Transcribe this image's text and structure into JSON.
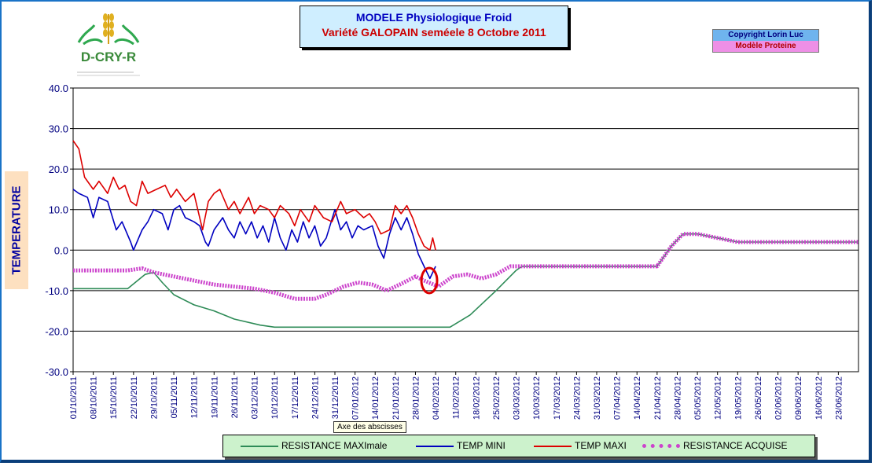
{
  "logo": {
    "text": "D-CRY-R",
    "icon": "wheat-hands-icon"
  },
  "header": {
    "title": "MODELE Physiologique Froid",
    "subtitle": "Variété GALOPAIN  seméele 8 Octobre 2011"
  },
  "copyright": {
    "line1": "Copyright Lorin Luc",
    "line2": "Modèle Proteine"
  },
  "tooltip": "Axe des abscisses",
  "colors": {
    "resistance_max": "#2e8b57",
    "temp_min": "#0000c0",
    "temp_max": "#dd0000",
    "resistance_acquise": "#cc44cc",
    "frame": "#1a73c7",
    "highlight": "#dd0000"
  },
  "chart_data": {
    "type": "line",
    "ylabel": "TEMPERATURE",
    "ylim": [
      -30,
      40
    ],
    "yticks": [
      "40.0",
      "30.0",
      "20.0",
      "10.0",
      "0.0",
      "-10.0",
      "-20.0",
      "-30.0"
    ],
    "grid": true,
    "legend_position": "bottom",
    "x_start": "01/10/2011",
    "x_end": "30/06/2012",
    "xticks": [
      "01/10/2011",
      "08/10/2011",
      "15/10/2011",
      "22/10/2011",
      "29/10/2011",
      "05/11/2011",
      "12/11/2011",
      "19/11/2011",
      "26/11/2011",
      "03/12/2011",
      "10/12/2011",
      "17/12/2011",
      "24/12/2011",
      "31/12/2011",
      "07/01/2012",
      "14/01/2012",
      "21/01/2012",
      "28/01/2012",
      "04/02/2012",
      "11/02/2012",
      "18/02/2012",
      "25/02/2012",
      "03/03/2012",
      "10/03/2012",
      "17/03/2012",
      "24/03/2012",
      "31/03/2012",
      "07/04/2012",
      "14/04/2012",
      "21/04/2012",
      "28/04/2012",
      "05/05/2012",
      "12/05/2012",
      "19/05/2012",
      "26/05/2012",
      "02/06/2012",
      "09/06/2012",
      "16/06/2012",
      "23/06/2012"
    ],
    "series": [
      {
        "name": "RESISTANCE MAXImale",
        "style": "line",
        "color": "#2e8b57",
        "points": [
          [
            "01/10/2011",
            -9.5
          ],
          [
            "20/10/2011",
            -9.5
          ],
          [
            "26/10/2011",
            -6
          ],
          [
            "29/10/2011",
            -5.5
          ],
          [
            "01/11/2011",
            -8
          ],
          [
            "05/11/2011",
            -11
          ],
          [
            "12/11/2011",
            -13.5
          ],
          [
            "19/11/2011",
            -15
          ],
          [
            "26/11/2011",
            -17
          ],
          [
            "05/12/2011",
            -18.5
          ],
          [
            "10/12/2011",
            -19
          ],
          [
            "09/02/2012",
            -19
          ],
          [
            "16/02/2012",
            -16
          ],
          [
            "25/02/2012",
            -10
          ],
          [
            "03/03/2012",
            -5
          ],
          [
            "05/03/2012",
            -4
          ],
          [
            "21/04/2012",
            -4
          ],
          [
            "26/04/2012",
            1
          ],
          [
            "30/04/2012",
            4
          ],
          [
            "05/05/2012",
            4
          ],
          [
            "12/05/2012",
            3
          ],
          [
            "19/05/2012",
            2
          ],
          [
            "30/06/2012",
            2
          ]
        ]
      },
      {
        "name": "TEMP MINI",
        "style": "line",
        "color": "#0000c0",
        "points": [
          [
            "01/10/2011",
            15
          ],
          [
            "03/10/2011",
            14
          ],
          [
            "06/10/2011",
            13
          ],
          [
            "08/10/2011",
            8
          ],
          [
            "10/10/2011",
            13
          ],
          [
            "13/10/2011",
            12
          ],
          [
            "16/10/2011",
            5
          ],
          [
            "18/10/2011",
            7
          ],
          [
            "21/10/2011",
            2
          ],
          [
            "22/10/2011",
            0
          ],
          [
            "25/10/2011",
            5
          ],
          [
            "27/10/2011",
            7
          ],
          [
            "29/10/2011",
            10
          ],
          [
            "01/11/2011",
            9
          ],
          [
            "03/11/2011",
            5
          ],
          [
            "05/11/2011",
            10
          ],
          [
            "07/11/2011",
            11
          ],
          [
            "09/11/2011",
            8
          ],
          [
            "12/11/2011",
            7
          ],
          [
            "14/11/2011",
            6
          ],
          [
            "16/11/2011",
            2
          ],
          [
            "17/11/2011",
            1
          ],
          [
            "19/11/2011",
            5
          ],
          [
            "22/11/2011",
            8
          ],
          [
            "24/11/2011",
            5
          ],
          [
            "26/11/2011",
            3
          ],
          [
            "28/11/2011",
            7
          ],
          [
            "30/11/2011",
            4
          ],
          [
            "02/12/2011",
            7
          ],
          [
            "04/12/2011",
            3
          ],
          [
            "06/12/2011",
            6
          ],
          [
            "08/12/2011",
            2
          ],
          [
            "10/12/2011",
            8
          ],
          [
            "12/12/2011",
            3
          ],
          [
            "14/12/2011",
            0
          ],
          [
            "16/12/2011",
            5
          ],
          [
            "18/12/2011",
            2
          ],
          [
            "20/12/2011",
            7
          ],
          [
            "22/12/2011",
            3
          ],
          [
            "24/12/2011",
            6
          ],
          [
            "26/12/2011",
            1
          ],
          [
            "28/12/2011",
            3
          ],
          [
            "31/12/2011",
            10
          ],
          [
            "02/01/2012",
            5
          ],
          [
            "04/01/2012",
            7
          ],
          [
            "06/01/2012",
            3
          ],
          [
            "08/01/2012",
            6
          ],
          [
            "10/01/2012",
            5
          ],
          [
            "13/01/2012",
            6
          ],
          [
            "15/01/2012",
            1
          ],
          [
            "17/01/2012",
            -2
          ],
          [
            "19/01/2012",
            4
          ],
          [
            "21/01/2012",
            8
          ],
          [
            "23/01/2012",
            5
          ],
          [
            "25/01/2012",
            8
          ],
          [
            "27/01/2012",
            4
          ],
          [
            "29/01/2012",
            -1
          ],
          [
            "31/01/2012",
            -4
          ],
          [
            "02/02/2012",
            -7
          ],
          [
            "04/02/2012",
            -4
          ]
        ]
      },
      {
        "name": "TEMP MAXI",
        "style": "line",
        "color": "#dd0000",
        "points": [
          [
            "01/10/2011",
            27
          ],
          [
            "03/10/2011",
            25
          ],
          [
            "05/10/2011",
            18
          ],
          [
            "08/10/2011",
            15
          ],
          [
            "10/10/2011",
            17
          ],
          [
            "13/10/2011",
            14
          ],
          [
            "15/10/2011",
            18
          ],
          [
            "17/10/2011",
            15
          ],
          [
            "19/10/2011",
            16
          ],
          [
            "21/10/2011",
            12
          ],
          [
            "23/10/2011",
            11
          ],
          [
            "25/10/2011",
            17
          ],
          [
            "27/10/2011",
            14
          ],
          [
            "30/10/2011",
            15
          ],
          [
            "02/11/2011",
            16
          ],
          [
            "04/11/2011",
            13
          ],
          [
            "06/11/2011",
            15
          ],
          [
            "09/11/2011",
            12
          ],
          [
            "12/11/2011",
            14
          ],
          [
            "15/11/2011",
            5
          ],
          [
            "17/11/2011",
            12
          ],
          [
            "19/11/2011",
            14
          ],
          [
            "21/11/2011",
            15
          ],
          [
            "24/11/2011",
            10
          ],
          [
            "26/11/2011",
            12
          ],
          [
            "28/11/2011",
            9
          ],
          [
            "01/12/2011",
            13
          ],
          [
            "03/12/2011",
            9
          ],
          [
            "05/12/2011",
            11
          ],
          [
            "08/12/2011",
            10
          ],
          [
            "10/12/2011",
            8
          ],
          [
            "12/12/2011",
            11
          ],
          [
            "15/12/2011",
            9
          ],
          [
            "17/12/2011",
            6
          ],
          [
            "19/12/2011",
            10
          ],
          [
            "22/12/2011",
            7
          ],
          [
            "24/12/2011",
            11
          ],
          [
            "27/12/2011",
            8
          ],
          [
            "30/12/2011",
            7
          ],
          [
            "02/01/2012",
            12
          ],
          [
            "04/01/2012",
            9
          ],
          [
            "07/01/2012",
            10
          ],
          [
            "10/01/2012",
            8
          ],
          [
            "12/01/2012",
            9
          ],
          [
            "14/01/2012",
            7
          ],
          [
            "16/01/2012",
            4
          ],
          [
            "19/01/2012",
            5
          ],
          [
            "21/01/2012",
            11
          ],
          [
            "23/01/2012",
            9
          ],
          [
            "25/01/2012",
            11
          ],
          [
            "27/01/2012",
            8
          ],
          [
            "29/01/2012",
            4
          ],
          [
            "31/01/2012",
            1
          ],
          [
            "02/02/2012",
            0
          ],
          [
            "03/02/2012",
            3
          ],
          [
            "04/02/2012",
            0
          ]
        ]
      },
      {
        "name": "RESISTANCE ACQUISE",
        "style": "band",
        "color": "#cc44cc",
        "points": [
          [
            "01/10/2011",
            -5
          ],
          [
            "20/10/2011",
            -5
          ],
          [
            "25/10/2011",
            -4.5
          ],
          [
            "29/10/2011",
            -5.5
          ],
          [
            "05/11/2011",
            -6.5
          ],
          [
            "12/11/2011",
            -7.5
          ],
          [
            "19/11/2011",
            -8.5
          ],
          [
            "26/11/2011",
            -9
          ],
          [
            "03/12/2011",
            -9.5
          ],
          [
            "10/12/2011",
            -10.5
          ],
          [
            "17/12/2011",
            -12
          ],
          [
            "24/12/2011",
            -12
          ],
          [
            "28/12/2011",
            -11
          ],
          [
            "03/01/2012",
            -9
          ],
          [
            "08/01/2012",
            -8
          ],
          [
            "13/01/2012",
            -8.5
          ],
          [
            "18/01/2012",
            -10
          ],
          [
            "24/01/2012",
            -8
          ],
          [
            "28/01/2012",
            -6.5
          ],
          [
            "31/01/2012",
            -7.5
          ],
          [
            "05/02/2012",
            -9
          ],
          [
            "10/02/2012",
            -6.5
          ],
          [
            "15/02/2012",
            -6
          ],
          [
            "20/02/2012",
            -7
          ],
          [
            "25/02/2012",
            -6
          ],
          [
            "01/03/2012",
            -4
          ],
          [
            "05/03/2012",
            -4
          ],
          [
            "21/04/2012",
            -4
          ],
          [
            "26/04/2012",
            1
          ],
          [
            "30/04/2012",
            4
          ],
          [
            "05/05/2012",
            4
          ],
          [
            "12/05/2012",
            3
          ],
          [
            "19/05/2012",
            2
          ],
          [
            "30/06/2012",
            2
          ]
        ]
      }
    ]
  }
}
